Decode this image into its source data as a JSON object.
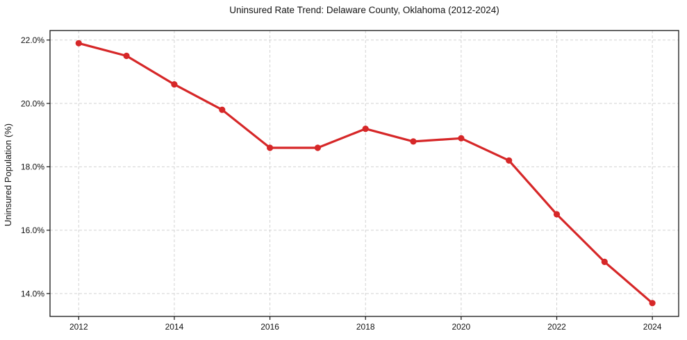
{
  "chart_data": {
    "type": "line",
    "title": "Uninsured Rate Trend: Delaware County, Oklahoma (2012-2024)",
    "xlabel": "",
    "ylabel": "Uninsured Population (%)",
    "x": [
      2012,
      2013,
      2014,
      2015,
      2016,
      2017,
      2018,
      2019,
      2020,
      2021,
      2022,
      2023,
      2024
    ],
    "values": [
      21.9,
      21.5,
      20.6,
      19.8,
      18.6,
      18.6,
      19.2,
      18.8,
      18.9,
      18.2,
      16.5,
      15.0,
      13.7
    ],
    "x_ticks": [
      2012,
      2014,
      2016,
      2018,
      2020,
      2022,
      2024
    ],
    "x_tick_labels": [
      "2012",
      "2014",
      "2016",
      "2018",
      "2020",
      "2022",
      "2024"
    ],
    "y_ticks": [
      14,
      16,
      18,
      20,
      22
    ],
    "y_tick_labels": [
      "14.0%",
      "16.0%",
      "18.0%",
      "20.0%",
      "22.0%"
    ],
    "x_range": [
      2011.4,
      2024.55
    ],
    "y_range": [
      13.28,
      22.3
    ],
    "grid": true,
    "legend": "none",
    "styles": {
      "line_color": "#d62728",
      "marker": "circle",
      "marker_radius": 4.6,
      "line_width": 3.2,
      "grid_color": "#d2d2d2",
      "grid_dash": "4 3",
      "spine_color": "#141414",
      "tick_label_color": "#111111",
      "tick_font_size": 12,
      "background": "#ffffff"
    }
  }
}
